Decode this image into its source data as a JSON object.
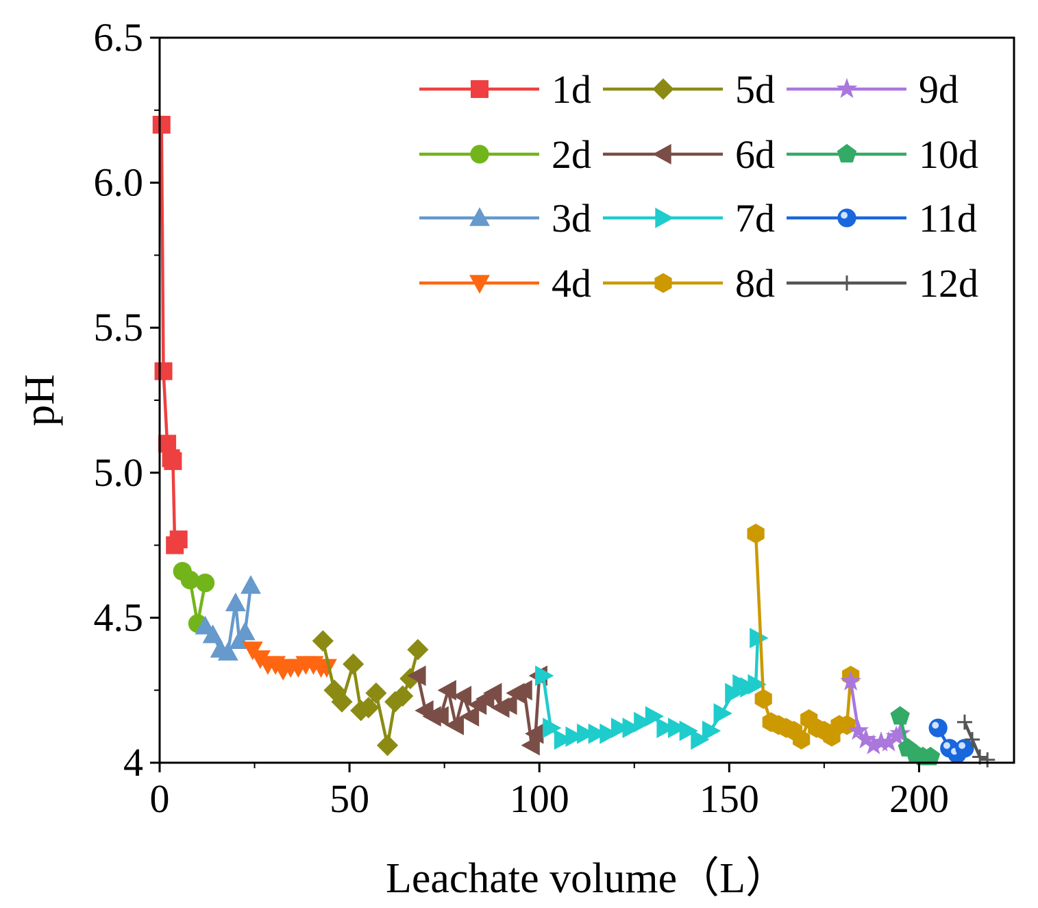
{
  "chart_data": {
    "type": "line",
    "title": "",
    "xlabel": "Leachate volume（L）",
    "ylabel": "pH",
    "xlim": [
      0,
      225
    ],
    "ylim": [
      4.0,
      6.5
    ],
    "grid": false,
    "legend": "top-right, 3 columns",
    "xticks": [
      {
        "value": 0,
        "label": "0"
      },
      {
        "value": 50,
        "label": "50"
      },
      {
        "value": 100,
        "label": "100"
      },
      {
        "value": 150,
        "label": "150"
      },
      {
        "value": 200,
        "label": "200"
      }
    ],
    "yticks": [
      {
        "value": 4.0,
        "label": "4"
      },
      {
        "value": 4.5,
        "label": "4.5"
      },
      {
        "value": 5.0,
        "label": "5.0"
      },
      {
        "value": 5.5,
        "label": "5.5"
      },
      {
        "value": 6.0,
        "label": "6.0"
      },
      {
        "value": 6.5,
        "label": "6.5"
      }
    ],
    "series": [
      {
        "name": "1d",
        "color": "#ee4040",
        "marker": "square",
        "x": [
          0.5,
          1.0,
          2.0,
          3.0,
          3.5,
          4.0,
          5.0
        ],
        "y": [
          6.2,
          5.35,
          5.1,
          5.05,
          5.04,
          4.75,
          4.77
        ]
      },
      {
        "name": "2d",
        "color": "#72b51a",
        "marker": "circle",
        "x": [
          6.0,
          8.0,
          10.0,
          12.0
        ],
        "y": [
          4.66,
          4.63,
          4.48,
          4.62
        ]
      },
      {
        "name": "3d",
        "color": "#6699cc",
        "marker": "triangle-up",
        "x": [
          12.0,
          14.0,
          16.0,
          18.0,
          20.0,
          21.0,
          22.5,
          24.0
        ],
        "y": [
          4.47,
          4.44,
          4.39,
          4.38,
          4.55,
          4.42,
          4.45,
          4.61
        ]
      },
      {
        "name": "4d",
        "color": "#ff6611",
        "marker": "triangle-down",
        "x": [
          24.5,
          26.5,
          28.5,
          30.5,
          32.5,
          34.5,
          36.5,
          38.5,
          40.5,
          42.5,
          44.0
        ],
        "y": [
          4.39,
          4.36,
          4.34,
          4.34,
          4.32,
          4.33,
          4.33,
          4.34,
          4.34,
          4.33,
          4.33
        ]
      },
      {
        "name": "5d",
        "color": "#8b8b14",
        "marker": "diamond",
        "x": [
          43.0,
          46.0,
          48.0,
          51.0,
          53.0,
          55.0,
          57.0,
          60.0,
          62.0,
          64.0,
          66.0,
          68.0
        ],
        "y": [
          4.42,
          4.25,
          4.21,
          4.34,
          4.18,
          4.19,
          4.24,
          4.06,
          4.21,
          4.23,
          4.29,
          4.39
        ]
      },
      {
        "name": "6d",
        "color": "#7a4e46",
        "marker": "triangle-left",
        "x": [
          68.0,
          70.0,
          72.0,
          74.0,
          76.0,
          78.0,
          80.0,
          82.0,
          84.0,
          86.0,
          88.0,
          90.0,
          92.0,
          94.0,
          96.0,
          98.0,
          99.0,
          100.0
        ],
        "y": [
          4.3,
          4.18,
          4.16,
          4.16,
          4.25,
          4.13,
          4.23,
          4.16,
          4.2,
          4.22,
          4.24,
          4.19,
          4.2,
          4.24,
          4.25,
          4.06,
          4.1,
          4.3
        ]
      },
      {
        "name": "7d",
        "color": "#1fcccc",
        "marker": "triangle-right",
        "x": [
          101.0,
          103.0,
          106.0,
          109.0,
          112.0,
          115.0,
          118.0,
          121.0,
          124.0,
          127.0,
          130.0,
          133.0,
          136.0,
          139.0,
          142.0,
          145.0,
          148.0,
          151.0,
          153.0,
          155.0,
          157.0,
          157.5
        ],
        "y": [
          4.3,
          4.12,
          4.08,
          4.09,
          4.1,
          4.1,
          4.1,
          4.12,
          4.12,
          4.14,
          4.16,
          4.12,
          4.12,
          4.11,
          4.08,
          4.11,
          4.17,
          4.24,
          4.27,
          4.26,
          4.27,
          4.43
        ]
      },
      {
        "name": "8d",
        "color": "#cc9900",
        "marker": "hexagon",
        "x": [
          157.0,
          159.0,
          161.0,
          163.0,
          165.0,
          167.0,
          169.0,
          171.0,
          173.0,
          175.0,
          177.0,
          179.0,
          181.0,
          182.0
        ],
        "y": [
          4.79,
          4.22,
          4.14,
          4.13,
          4.12,
          4.11,
          4.08,
          4.15,
          4.12,
          4.11,
          4.09,
          4.13,
          4.13,
          4.3
        ]
      },
      {
        "name": "9d",
        "color": "#aa77dd",
        "marker": "star",
        "x": [
          182.0,
          184.0,
          186.0,
          188.0,
          190.0,
          192.0,
          194.0,
          195.0
        ],
        "y": [
          4.28,
          4.11,
          4.08,
          4.06,
          4.07,
          4.07,
          4.09,
          4.1
        ]
      },
      {
        "name": "10d",
        "color": "#33aa66",
        "marker": "pentagon",
        "x": [
          195.0,
          197.0,
          199.0,
          201.0,
          203.0
        ],
        "y": [
          4.16,
          4.05,
          4.03,
          4.02,
          4.02
        ]
      },
      {
        "name": "11d",
        "color": "#1a66dd",
        "marker": "ball",
        "x": [
          205.0,
          208.0,
          210.0,
          212.0
        ],
        "y": [
          4.12,
          4.05,
          4.03,
          4.05
        ]
      },
      {
        "name": "12d",
        "color": "#555555",
        "marker": "plus",
        "x": [
          212.0,
          214.0,
          216.0,
          218.0
        ],
        "y": [
          4.14,
          4.08,
          4.02,
          4.01
        ]
      }
    ]
  }
}
